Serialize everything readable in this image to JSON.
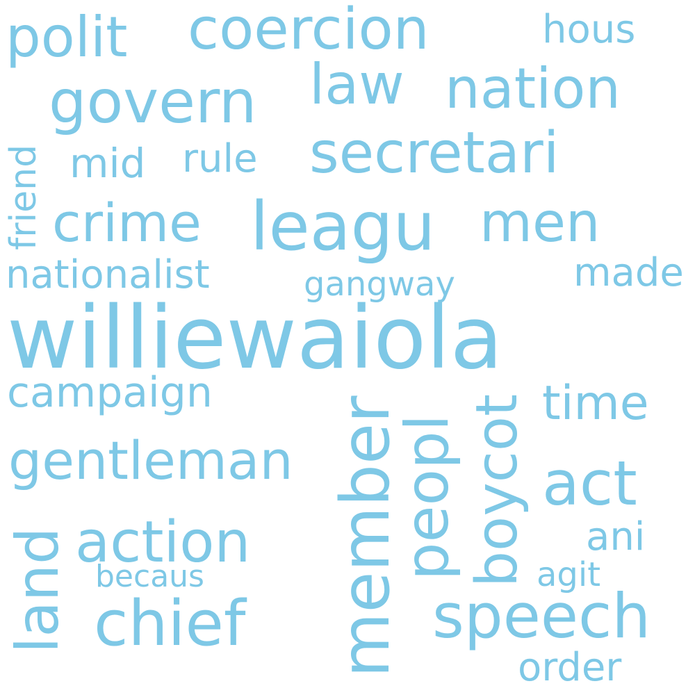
{
  "words": {
    "williewaiola": "williewaiola",
    "coercion": "coercion",
    "polit": "polit",
    "hous": "hous",
    "law": "law",
    "nation": "nation",
    "govern": "govern",
    "secretari": "secretari",
    "mid": "mid",
    "rule": "rule",
    "crime": "crime",
    "leagu": "leagu",
    "men": "men",
    "nationalist": "nationalist",
    "gangway": "gangway",
    "made": "made",
    "campaign": "campaign",
    "time": "time",
    "gentleman": "gentleman",
    "act": "act",
    "action": "action",
    "ani": "ani",
    "becaus": "becaus",
    "agit": "agit",
    "chief": "chief",
    "speech": "speech",
    "order": "order",
    "friend": "friend",
    "land": "land",
    "member": "member",
    "peopl": "peopl",
    "boycot": "boycot"
  },
  "colors": {
    "word": "#7ec8e6",
    "background": "#ffffff"
  }
}
